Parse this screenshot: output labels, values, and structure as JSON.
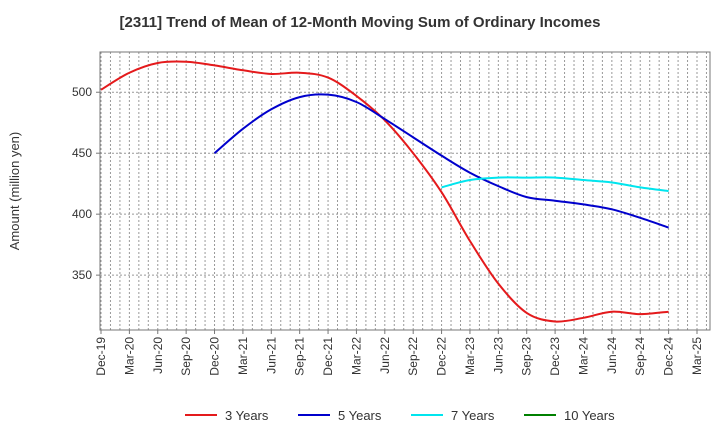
{
  "chart_data": {
    "type": "line",
    "title": "[2311]  Trend of Mean of 12-Month Moving Sum of Ordinary Incomes",
    "xlabel": "",
    "ylabel": "Amount (million yen)",
    "ylim": [
      305,
      533
    ],
    "yticks": [
      350,
      400,
      450,
      500
    ],
    "categories": [
      "Dec-19",
      "Mar-20",
      "Jun-20",
      "Sep-20",
      "Dec-20",
      "Mar-21",
      "Jun-21",
      "Sep-21",
      "Dec-21",
      "Mar-22",
      "Jun-22",
      "Sep-22",
      "Dec-22",
      "Mar-23",
      "Jun-23",
      "Sep-23",
      "Dec-23",
      "Mar-24",
      "Jun-24",
      "Sep-24",
      "Dec-24",
      "Mar-25"
    ],
    "grid": true,
    "legend_position": "bottom",
    "series": [
      {
        "name": "3 Years",
        "color": "#e41a1c",
        "values": [
          502,
          516,
          524,
          525,
          522,
          518,
          515,
          516,
          512,
          497,
          477,
          450,
          418,
          378,
          343,
          319,
          312,
          315,
          320,
          318,
          320,
          null
        ]
      },
      {
        "name": "5 Years",
        "color": "#0000cc",
        "values": [
          null,
          null,
          null,
          null,
          450,
          470,
          486,
          496,
          498,
          492,
          478,
          463,
          448,
          434,
          423,
          414,
          411,
          408,
          404,
          397,
          389,
          null
        ]
      },
      {
        "name": "7 Years",
        "color": "#00e5ee",
        "values": [
          null,
          null,
          null,
          null,
          null,
          null,
          null,
          null,
          null,
          null,
          null,
          null,
          422,
          428,
          430,
          430,
          430,
          428,
          426,
          422,
          419,
          null
        ]
      },
      {
        "name": "10 Years",
        "color": "#008000",
        "values": [
          null,
          null,
          null,
          null,
          null,
          null,
          null,
          null,
          null,
          null,
          null,
          null,
          null,
          null,
          null,
          null,
          null,
          null,
          null,
          null,
          null,
          null
        ]
      }
    ]
  }
}
